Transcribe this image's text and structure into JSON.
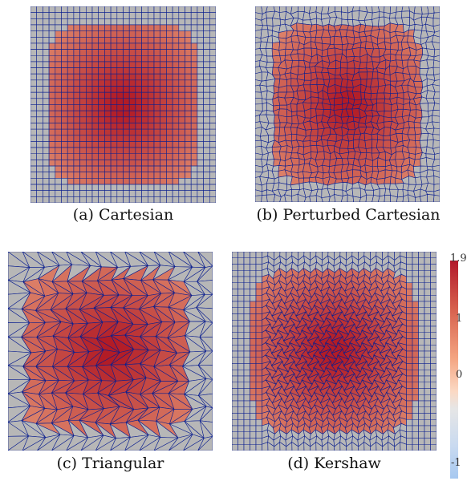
{
  "figure": {
    "panels": [
      {
        "id": "a",
        "caption": "(a) Cartesian",
        "mesh": "cartesian"
      },
      {
        "id": "b",
        "caption": "(b) Perturbed Cartesian",
        "mesh": "perturbed"
      },
      {
        "id": "c",
        "caption": "(c) Triangular",
        "mesh": "triangular"
      },
      {
        "id": "d",
        "caption": "(d) Kershaw",
        "mesh": "kershaw"
      }
    ],
    "colorbar": {
      "ticks": [
        "1.9",
        "1",
        "0",
        "-1"
      ],
      "min": -1,
      "max": 1.9,
      "colors": {
        "high": "#b2182b",
        "mid": "#f4a582",
        "neutral": "#e6e6e6",
        "low": "#a6c8f0"
      }
    },
    "colors": {
      "mesh_line": "#0b1f8f",
      "background_cell": "#b7b7b7"
    }
  }
}
